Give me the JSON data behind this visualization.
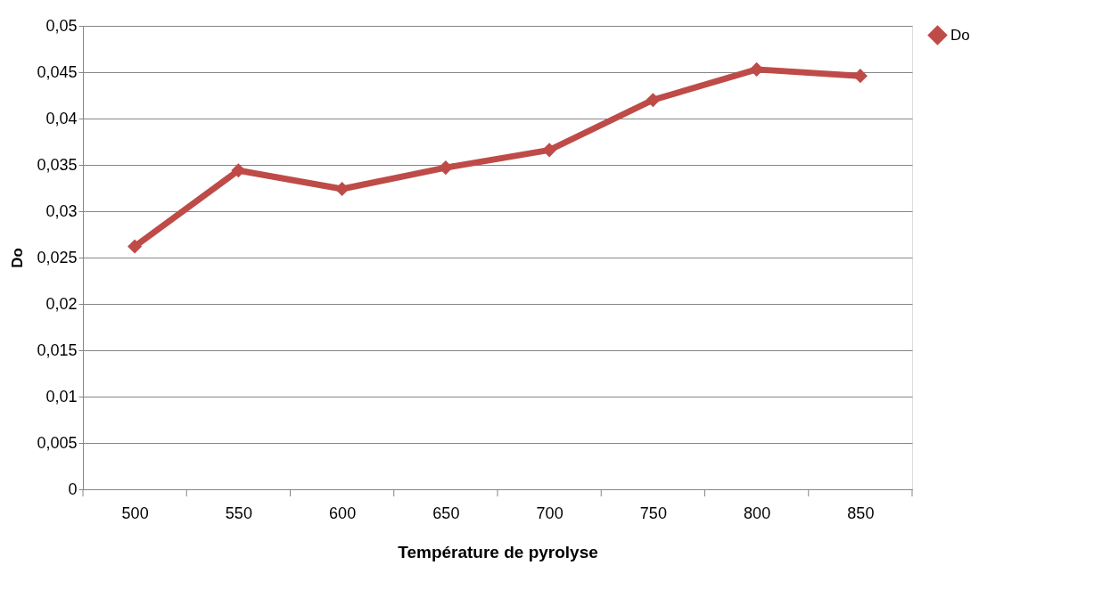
{
  "chart_data": {
    "type": "line",
    "xlabel": "Température de pyrolyse",
    "ylabel": "Do",
    "categories": [
      "500",
      "550",
      "600",
      "650",
      "700",
      "750",
      "800",
      "850"
    ],
    "series": [
      {
        "name": "Do",
        "color": "#be4b48",
        "values": [
          0.0262,
          0.0344,
          0.0324,
          0.0347,
          0.0366,
          0.042,
          0.0453,
          0.0446
        ]
      }
    ],
    "ylim": [
      0,
      0.05
    ],
    "yticks": [
      {
        "value": 0,
        "label": "0"
      },
      {
        "value": 0.005,
        "label": "0,005"
      },
      {
        "value": 0.01,
        "label": "0,01"
      },
      {
        "value": 0.015,
        "label": "0,015"
      },
      {
        "value": 0.02,
        "label": "0,02"
      },
      {
        "value": 0.025,
        "label": "0,025"
      },
      {
        "value": 0.03,
        "label": "0,03"
      },
      {
        "value": 0.035,
        "label": "0,035"
      },
      {
        "value": 0.04,
        "label": "0,04"
      },
      {
        "value": 0.045,
        "label": "0,045"
      },
      {
        "value": 0.05,
        "label": "0,05"
      }
    ],
    "grid": "y",
    "legend": "right",
    "marker": "diamond",
    "line_style": "solid"
  }
}
